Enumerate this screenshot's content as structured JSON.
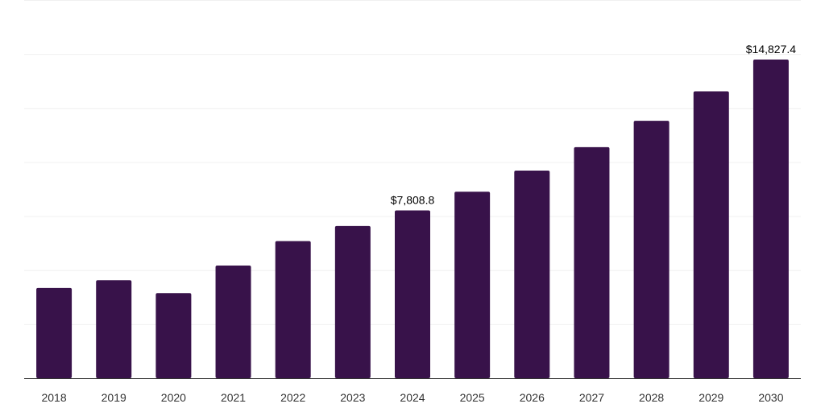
{
  "chart_data": {
    "type": "bar",
    "categories": [
      "2018",
      "2019",
      "2020",
      "2021",
      "2022",
      "2023",
      "2024",
      "2025",
      "2026",
      "2027",
      "2028",
      "2029",
      "2030"
    ],
    "values": [
      4201,
      4560,
      3960,
      5242,
      6382,
      7084,
      7808.8,
      8680,
      9660,
      10750,
      11980,
      13350,
      14827.4
    ],
    "data_labels": [
      {
        "index": 6,
        "text": "$7,808.8"
      },
      {
        "index": 12,
        "text": "$14,827.4"
      }
    ],
    "title": "",
    "xlabel": "",
    "ylabel": "",
    "ylim": [
      0,
      17600
    ],
    "grid": true,
    "y_tick_labels_shown": false,
    "bar_color": "#38124a"
  }
}
